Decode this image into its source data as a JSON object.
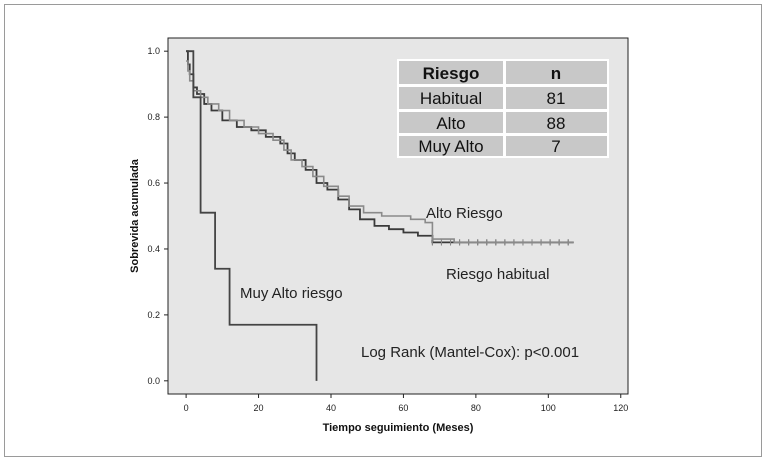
{
  "chart_data": {
    "type": "line",
    "subtype": "kaplan-meier",
    "xlabel": "Tiempo seguimiento (Meses)",
    "ylabel": "Sobrevida acumulada",
    "xlim": [
      -5,
      122
    ],
    "ylim": [
      -0.04,
      1.04
    ],
    "x_ticks": [
      0,
      20,
      40,
      60,
      80,
      100,
      120
    ],
    "y_ticks": [
      "0.0",
      "0.2",
      "0.4",
      "0.6",
      "0.8",
      "1.0"
    ],
    "grid": false,
    "colors": {
      "plot_bg": "#e6e6e6",
      "table_bg": "#c8c8c8",
      "habitual": "#3a3a3a",
      "alto": "#8a8a8a",
      "muy_alto": "#444444"
    },
    "series": [
      {
        "key": "habitual",
        "points": [
          [
            0,
            1.0
          ],
          [
            0.5,
            0.96
          ],
          [
            1,
            0.93
          ],
          [
            2,
            0.89
          ],
          [
            3,
            0.87
          ],
          [
            5,
            0.84
          ],
          [
            7,
            0.82
          ],
          [
            10,
            0.79
          ],
          [
            14,
            0.77
          ],
          [
            18,
            0.76
          ],
          [
            22,
            0.74
          ],
          [
            26,
            0.72
          ],
          [
            28,
            0.69
          ],
          [
            30,
            0.67
          ],
          [
            33,
            0.64
          ],
          [
            36,
            0.6
          ],
          [
            39,
            0.58
          ],
          [
            42,
            0.55
          ],
          [
            45,
            0.52
          ],
          [
            48,
            0.49
          ],
          [
            52,
            0.47
          ],
          [
            56,
            0.46
          ],
          [
            60,
            0.45
          ],
          [
            64,
            0.44
          ],
          [
            68,
            0.42
          ],
          [
            75,
            0.42
          ],
          [
            85,
            0.42
          ],
          [
            100,
            0.42
          ],
          [
            107,
            0.42
          ]
        ]
      },
      {
        "key": "alto",
        "points": [
          [
            0,
            0.97
          ],
          [
            0.5,
            0.94
          ],
          [
            1,
            0.91
          ],
          [
            2,
            0.88
          ],
          [
            4,
            0.86
          ],
          [
            6,
            0.84
          ],
          [
            9,
            0.82
          ],
          [
            12,
            0.79
          ],
          [
            16,
            0.77
          ],
          [
            20,
            0.75
          ],
          [
            24,
            0.73
          ],
          [
            27,
            0.7
          ],
          [
            29,
            0.67
          ],
          [
            32,
            0.65
          ],
          [
            35,
            0.62
          ],
          [
            38,
            0.59
          ],
          [
            42,
            0.56
          ],
          [
            45,
            0.53
          ],
          [
            49,
            0.51
          ],
          [
            54,
            0.5
          ],
          [
            58,
            0.5
          ],
          [
            62,
            0.49
          ],
          [
            66,
            0.48
          ],
          [
            68,
            0.43
          ],
          [
            74,
            0.42
          ],
          [
            85,
            0.42
          ],
          [
            100,
            0.42
          ],
          [
            107,
            0.42
          ]
        ]
      },
      {
        "key": "muy_alto",
        "points": [
          [
            0,
            1.0
          ],
          [
            2,
            1.0
          ],
          [
            2,
            0.86
          ],
          [
            4,
            0.86
          ],
          [
            4,
            0.51
          ],
          [
            8,
            0.51
          ],
          [
            8,
            0.34
          ],
          [
            12,
            0.34
          ],
          [
            12,
            0.17
          ],
          [
            36,
            0.17
          ],
          [
            36,
            0.0
          ]
        ]
      }
    ],
    "annotations": {
      "alto_riesgo": "Alto Riesgo",
      "riesgo_habitual": "Riesgo habitual",
      "muy_alto_riesgo": "Muy Alto riesgo",
      "log_rank": "Log Rank (Mantel-Cox):  p<0.001"
    },
    "table": {
      "header": [
        "Riesgo",
        "n"
      ],
      "rows": [
        [
          "Habitual",
          "81"
        ],
        [
          "Alto",
          "88"
        ],
        [
          "Muy Alto",
          "7"
        ]
      ]
    }
  }
}
